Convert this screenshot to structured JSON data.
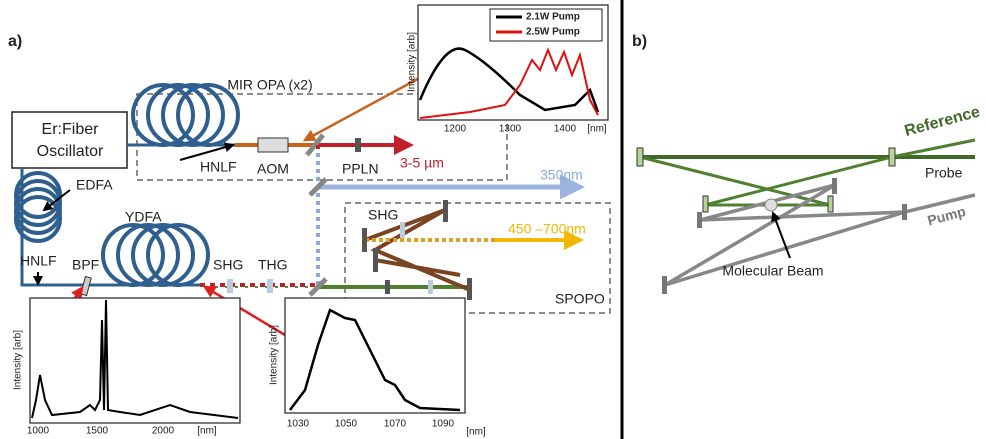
{
  "panel_a": {
    "label": "a)",
    "oscillator": [
      "Er:Fiber",
      "Oscillator"
    ],
    "mir_opa": "MIR OPA (x2)",
    "hnlf_top": "HNLF",
    "aom": "AOM",
    "ppln": "PPLN",
    "mir_output": "3-5 µm",
    "uv_output": "350nm",
    "edfa": "EDFA",
    "ydfa": "YDFA",
    "hnlf_bottom": "HNLF",
    "bpf": "BPF",
    "shg": "SHG",
    "thg": "THG",
    "spopo_shg": "SHG",
    "visible_output": "450 –700nm",
    "spopo": "SPOPO",
    "inset_mir": {
      "legend": [
        "2.1W Pump",
        "2.5W Pump"
      ],
      "ylabel": "Intensity [arb]",
      "xticks": [
        "1200",
        "1300",
        "1400"
      ],
      "unit": "[nm]"
    },
    "inset_supercontinuum": {
      "ylabel": "Intensity [arb]",
      "xticks": [
        "1000",
        "1500",
        "2000"
      ],
      "unit": "[nm]"
    },
    "inset_ydfa": {
      "ylabel": "Intensity [arb]",
      "xticks": [
        "1030",
        "1050",
        "1070",
        "1090"
      ],
      "unit": "[nm]"
    }
  },
  "panel_b": {
    "label": "b)",
    "reference": "Reference",
    "probe": "Probe",
    "pump": "Pump",
    "molecular_beam": "Molecular Beam"
  }
}
